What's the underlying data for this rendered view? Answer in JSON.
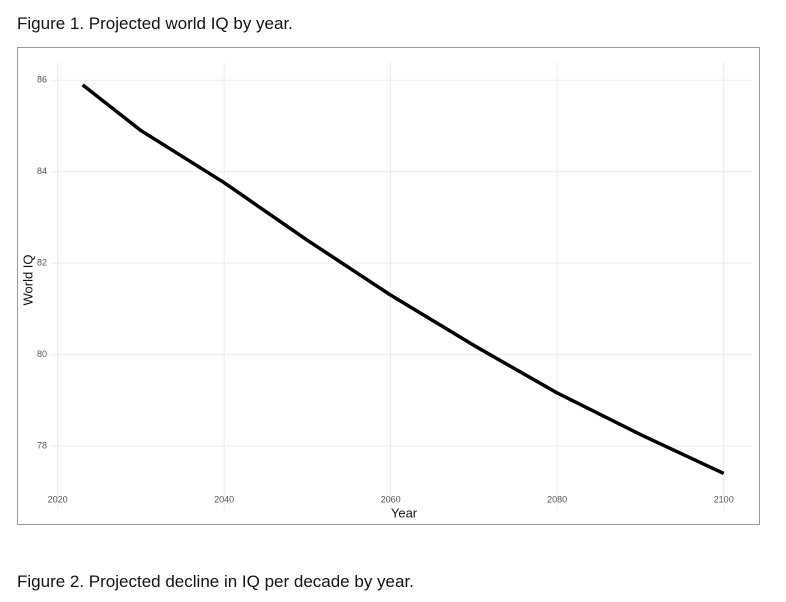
{
  "figure1_caption": "Figure 1. Projected world IQ by year.",
  "chart_data": {
    "type": "line",
    "x_label": "Year",
    "y_label": "World IQ",
    "x": [
      2023,
      2030,
      2040,
      2050,
      2060,
      2070,
      2080,
      2090,
      2100
    ],
    "values": [
      85.9,
      84.9,
      83.76,
      82.5,
      81.3,
      80.2,
      79.16,
      78.25,
      77.4
    ],
    "color": "#000000",
    "xlim": [
      2019.2,
      2103.4
    ],
    "ylim": [
      76.6,
      86.4
    ],
    "xticks": [
      2020,
      2040,
      2060,
      2080,
      2100
    ],
    "yticks": [
      78,
      80,
      82,
      84,
      86
    ],
    "grid": true
  },
  "figure2_caption": "Figure 2. Projected decline in IQ per decade by year."
}
